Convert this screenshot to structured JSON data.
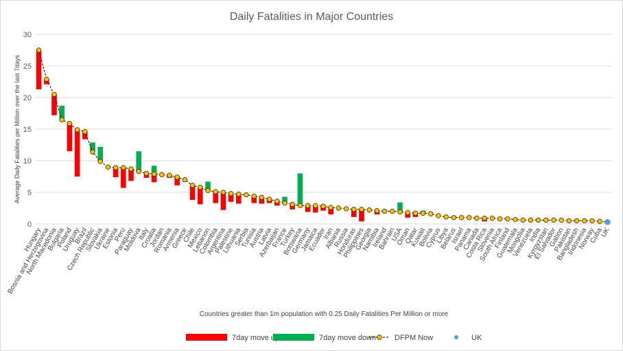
{
  "chart_data": {
    "type": "bar",
    "title": "Daily Fatalities in Major Countries",
    "xlabel": "Countries greater than 1m population with 0.25 Daily Fatalities Per Million or more",
    "ylabel": "Average Daily Fatalities per Million over the last 7days",
    "ylim": [
      0,
      30
    ],
    "yticks": [
      0,
      5,
      10,
      15,
      20,
      25,
      30
    ],
    "grid": true,
    "legend_position": "bottom",
    "categories": [
      "Hungary",
      "Bosnia and Herzegovina",
      "North Macedonia",
      "Bulgaria",
      "Poland",
      "Uruguay",
      "Brazil",
      "Czech Republic",
      "Slovakia",
      "Ukraine",
      "Estonia",
      "Peru",
      "Paraguay",
      "Moldova",
      "Italy",
      "Croatia",
      "Jordan",
      "Romania",
      "Armenia",
      "Greece",
      "Chile",
      "Mexico",
      "Lebanon",
      "Colombia",
      "Argentina",
      "Palestine",
      "Lithuania",
      "Serbia",
      "Tunisia",
      "Austria",
      "Latvia",
      "Azerbaijan",
      "France",
      "Turkey",
      "Botswana",
      "Germany",
      "Jamaica",
      "Ecuador",
      "Iran",
      "Albania",
      "Russia",
      "Honduras",
      "Philippines",
      "Georgia",
      "Namibia",
      "Ireland",
      "Bahrain",
      "USA",
      "Oman",
      "Qatar",
      "Kuwait",
      "Bolivia",
      "Cyprus",
      "Libya",
      "Belarus",
      "Israel",
      "Panama",
      "Canada",
      "Costa Rica",
      "Slovenia",
      "South Africa",
      "Finland",
      "Guatemala",
      "Mongolia",
      "Venezuela",
      "India",
      "Kyrgyzstan",
      "El Salvador",
      "Gabon",
      "Pakistan",
      "Bangladesh",
      "Indonesia",
      "Norway",
      "Cuba",
      "UK"
    ],
    "series": [
      {
        "name": "7day move up",
        "color": "#ff0000",
        "values": [
          6.2,
          0.8,
          3.3,
          0,
          4.4,
          7.4,
          1.2,
          0,
          0,
          0,
          1.5,
          3.2,
          1.9,
          0,
          0.7,
          1.3,
          0,
          0.4,
          1.3,
          0.2,
          2.3,
          2.7,
          0,
          1.8,
          2.8,
          1.3,
          1.5,
          0,
          1.1,
          1.0,
          0.6,
          0.7,
          0,
          0.8,
          0,
          1.0,
          1.1,
          0.7,
          1.1,
          0,
          0,
          1.2,
          1.9,
          0,
          0.6,
          0,
          0,
          0,
          0.8,
          0.6,
          0,
          0,
          0,
          0,
          0,
          0,
          0,
          0,
          0.5,
          0,
          0,
          0,
          0,
          0,
          0,
          0,
          0,
          0,
          0,
          0,
          0,
          0,
          0,
          0,
          0
        ]
      },
      {
        "name": "7day move down",
        "color": "#00b050",
        "values": [
          0,
          0,
          0,
          2.2,
          0,
          0,
          0,
          1.5,
          2.3,
          0,
          0,
          0,
          0,
          3.2,
          0,
          1.3,
          0,
          0,
          0,
          0,
          0,
          0,
          1.4,
          0,
          0,
          0,
          0,
          0,
          0,
          0,
          0,
          0,
          1.0,
          0,
          5.1,
          0,
          0,
          0,
          0,
          0,
          0,
          0,
          0,
          0,
          0,
          0,
          0,
          1.5,
          0,
          0,
          0.4,
          0,
          0,
          0,
          0,
          0,
          0,
          0,
          0,
          0,
          0,
          0,
          0,
          0,
          0,
          0,
          0,
          0,
          0,
          0,
          0,
          0,
          0,
          0,
          0
        ]
      },
      {
        "name": "DFPM Now",
        "color": "#ffc000",
        "values": [
          27.5,
          22.9,
          20.5,
          16.5,
          15.9,
          14.9,
          14.6,
          11.4,
          9.9,
          9.0,
          8.9,
          8.9,
          8.7,
          8.3,
          8.0,
          7.9,
          7.8,
          7.7,
          7.4,
          7.0,
          6.1,
          5.8,
          5.3,
          5.1,
          5.0,
          4.8,
          4.7,
          4.6,
          4.4,
          4.2,
          3.9,
          3.6,
          3.3,
          3.1,
          2.9,
          2.9,
          2.9,
          2.8,
          2.6,
          2.5,
          2.4,
          2.3,
          2.3,
          2.2,
          2.1,
          2.0,
          2.0,
          1.9,
          1.8,
          1.7,
          1.7,
          1.6,
          1.3,
          1.1,
          1.0,
          1.0,
          1.0,
          0.9,
          0.9,
          0.9,
          0.8,
          0.8,
          0.7,
          0.6,
          0.6,
          0.6,
          0.6,
          0.6,
          0.6,
          0.5,
          0.5,
          0.5,
          0.5,
          0.4,
          0.3
        ]
      },
      {
        "name": "UK",
        "color": "#5b9bd5",
        "values": [
          null,
          null,
          null,
          null,
          null,
          null,
          null,
          null,
          null,
          null,
          null,
          null,
          null,
          null,
          null,
          null,
          null,
          null,
          null,
          null,
          null,
          null,
          null,
          null,
          null,
          null,
          null,
          null,
          null,
          null,
          null,
          null,
          null,
          null,
          null,
          null,
          null,
          null,
          null,
          null,
          null,
          null,
          null,
          null,
          null,
          null,
          null,
          null,
          null,
          null,
          null,
          null,
          null,
          null,
          null,
          null,
          null,
          null,
          null,
          null,
          null,
          null,
          null,
          null,
          null,
          null,
          null,
          null,
          null,
          null,
          null,
          null,
          null,
          null,
          0.3
        ]
      }
    ]
  }
}
